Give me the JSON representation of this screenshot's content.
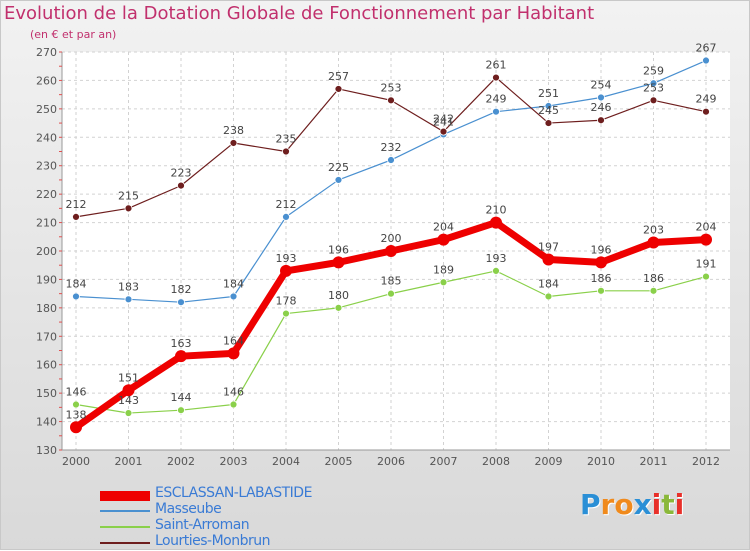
{
  "header": {
    "title": "Evolution de la Dotation Globale de Fonctionnement par Habitant",
    "subtitle": "(en € et par an)"
  },
  "logo": {
    "text": "Proxiti",
    "letters": [
      "P",
      "r",
      "o",
      "x",
      "i",
      "t",
      "i"
    ],
    "colors": [
      "#2a8fd6",
      "#f08a1c",
      "#f08a1c",
      "#2a8fd6",
      "#e8302a",
      "#8ab83a",
      "#e8302a"
    ]
  },
  "chart_data": {
    "type": "line",
    "title": "Evolution de la Dotation Globale de Fonctionnement par Habitant",
    "subtitle": "(en € et par an)",
    "xlabel": "",
    "ylabel": "",
    "x": [
      "2000",
      "2001",
      "2002",
      "2003",
      "2004",
      "2005",
      "2006",
      "2007",
      "2008",
      "2009",
      "2010",
      "2011",
      "2012"
    ],
    "ylim": [
      130,
      270
    ],
    "yticks": [
      "130",
      "140",
      "150",
      "160",
      "170",
      "180",
      "190",
      "200",
      "210",
      "220",
      "230",
      "240",
      "250",
      "260",
      "270"
    ],
    "grid": true,
    "legend_position": "bottom-left",
    "series": [
      {
        "name": "ESCLASSAN-LABASTIDE",
        "color": "#ee0000",
        "values": [
          138,
          151,
          163,
          164,
          193,
          196,
          200,
          204,
          210,
          197,
          196,
          203,
          204
        ],
        "labels": [
          "138",
          "151",
          "163",
          "164",
          "193",
          "196",
          "200",
          "204",
          "210",
          "197",
          "196",
          "203",
          "204"
        ]
      },
      {
        "name": "Masseube",
        "color": "#4a90d0",
        "values": [
          184,
          183,
          182,
          184,
          212,
          225,
          232,
          241,
          249,
          251,
          254,
          259,
          267
        ],
        "labels": [
          "184",
          "183",
          "182",
          "184",
          "212",
          "225",
          "232",
          "241",
          "249",
          "251",
          "254",
          "259",
          "267"
        ]
      },
      {
        "name": "Saint-Arroman",
        "color": "#8ad04a",
        "values": [
          146,
          143,
          144,
          146,
          178,
          180,
          185,
          189,
          193,
          184,
          186,
          186,
          191
        ],
        "labels": [
          "146",
          "143",
          "144",
          "146",
          "178",
          "180",
          "185",
          "189",
          "193",
          "184",
          "186",
          "186",
          "191"
        ]
      },
      {
        "name": "Lourties-Monbrun",
        "color": "#6e1e1e",
        "values": [
          212,
          215,
          223,
          238,
          235,
          257,
          253,
          242,
          261,
          245,
          246,
          253,
          249
        ],
        "labels": [
          "212",
          "215",
          "223",
          "238",
          "235",
          "257",
          "253",
          "242",
          "261",
          "245",
          "246",
          "253",
          "249"
        ]
      }
    ]
  }
}
